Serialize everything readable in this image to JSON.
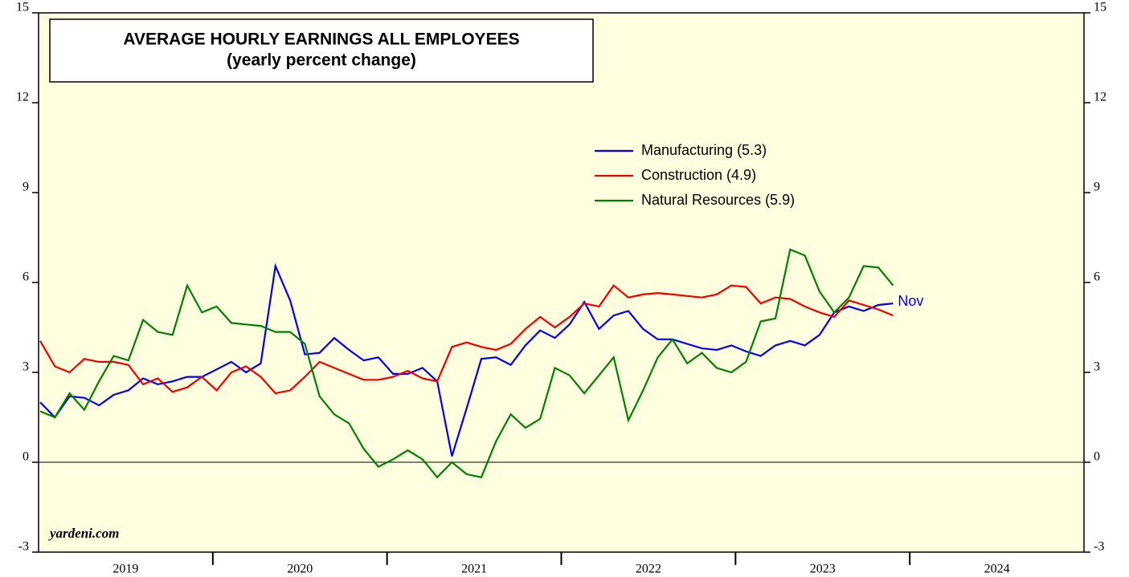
{
  "chart_data": {
    "type": "line",
    "title": "AVERAGE HOURLY EARNINGS ALL EMPLOYEES",
    "subtitle": "(yearly percent change)",
    "watermark": "yardeni.com",
    "annotation": "Nov",
    "categories": [
      null,
      null,
      null,
      null,
      null,
      null,
      null,
      null,
      null,
      null,
      null,
      null,
      null,
      null,
      null,
      null,
      null,
      null,
      null,
      null,
      null,
      null,
      null,
      null,
      null,
      null,
      null,
      null,
      null,
      null,
      null,
      null,
      null,
      null,
      null,
      null,
      null,
      null,
      null,
      null,
      null,
      null,
      null,
      null,
      null,
      null,
      null,
      null,
      null,
      null,
      null,
      null,
      null,
      null,
      null,
      null,
      null,
      null,
      null,
      null,
      null,
      null,
      null,
      null,
      null,
      null,
      null,
      null,
      null,
      null,
      null,
      null
    ],
    "xtick_labels": [
      "2019",
      "2020",
      "2021",
      "2022",
      "2023",
      "2024"
    ],
    "series": [
      {
        "name": "Manufacturing (5.3)",
        "color": "#0000ee",
        "values": [
          2.0,
          1.5,
          2.2,
          2.15,
          1.9,
          2.25,
          2.4,
          2.8,
          2.6,
          2.7,
          2.85,
          2.85,
          3.1,
          3.35,
          3.0,
          3.3,
          6.55,
          5.4,
          3.6,
          3.65,
          4.15,
          3.75,
          3.4,
          3.5,
          2.95,
          2.95,
          3.15,
          2.7,
          0.2,
          1.8,
          3.45,
          3.5,
          3.25,
          3.9,
          4.4,
          4.15,
          4.6,
          5.35,
          4.45,
          4.9,
          5.05,
          4.45,
          4.1,
          4.1,
          3.95,
          3.8,
          3.75,
          3.9,
          3.7,
          3.55,
          3.9,
          4.05,
          3.9,
          4.25,
          5.0,
          5.2,
          5.05,
          5.25,
          5.3,
          null,
          null,
          null,
          null,
          null,
          null,
          null,
          null,
          null,
          null,
          null,
          null,
          null
        ]
      },
      {
        "name": "Construction (4.9)",
        "color": "#ee0000",
        "values": [
          4.05,
          3.2,
          3.0,
          3.45,
          3.35,
          3.35,
          3.25,
          2.6,
          2.8,
          2.35,
          2.5,
          2.85,
          2.4,
          3.0,
          3.2,
          2.85,
          2.3,
          2.4,
          2.85,
          3.35,
          3.15,
          2.95,
          2.75,
          2.75,
          2.85,
          3.05,
          2.8,
          2.7,
          3.85,
          4.0,
          3.85,
          3.75,
          3.95,
          4.45,
          4.85,
          4.5,
          4.85,
          5.3,
          5.2,
          5.9,
          5.5,
          5.6,
          5.65,
          5.6,
          5.55,
          5.5,
          5.6,
          5.9,
          5.85,
          5.3,
          5.5,
          5.45,
          5.2,
          5.0,
          4.85,
          5.4,
          5.25,
          5.1,
          4.9,
          null,
          null,
          null,
          null,
          null,
          null,
          null,
          null,
          null,
          null,
          null,
          null,
          null
        ]
      },
      {
        "name": "Natural Resources (5.9)",
        "color": "#008000",
        "values": [
          1.7,
          1.5,
          2.3,
          1.75,
          2.7,
          3.55,
          3.4,
          4.75,
          4.35,
          4.25,
          5.9,
          5.0,
          5.2,
          4.65,
          4.6,
          4.55,
          4.35,
          4.35,
          3.95,
          2.2,
          1.6,
          1.3,
          0.45,
          -0.15,
          0.1,
          0.4,
          0.1,
          -0.5,
          0.0,
          -0.4,
          -0.5,
          0.7,
          1.6,
          1.15,
          1.45,
          3.15,
          2.9,
          2.3,
          2.9,
          3.5,
          1.4,
          2.4,
          3.5,
          4.1,
          3.3,
          3.65,
          3.15,
          3.0,
          3.35,
          4.7,
          4.8,
          7.1,
          6.9,
          5.7,
          5.0,
          5.5,
          6.55,
          6.5,
          5.9,
          null,
          null,
          null,
          null,
          null,
          null,
          null,
          null,
          null,
          null,
          null,
          null,
          null
        ]
      }
    ],
    "ylim": [
      -3,
      15
    ],
    "yticks": [
      -3,
      0,
      3,
      6,
      9,
      12,
      15
    ]
  }
}
